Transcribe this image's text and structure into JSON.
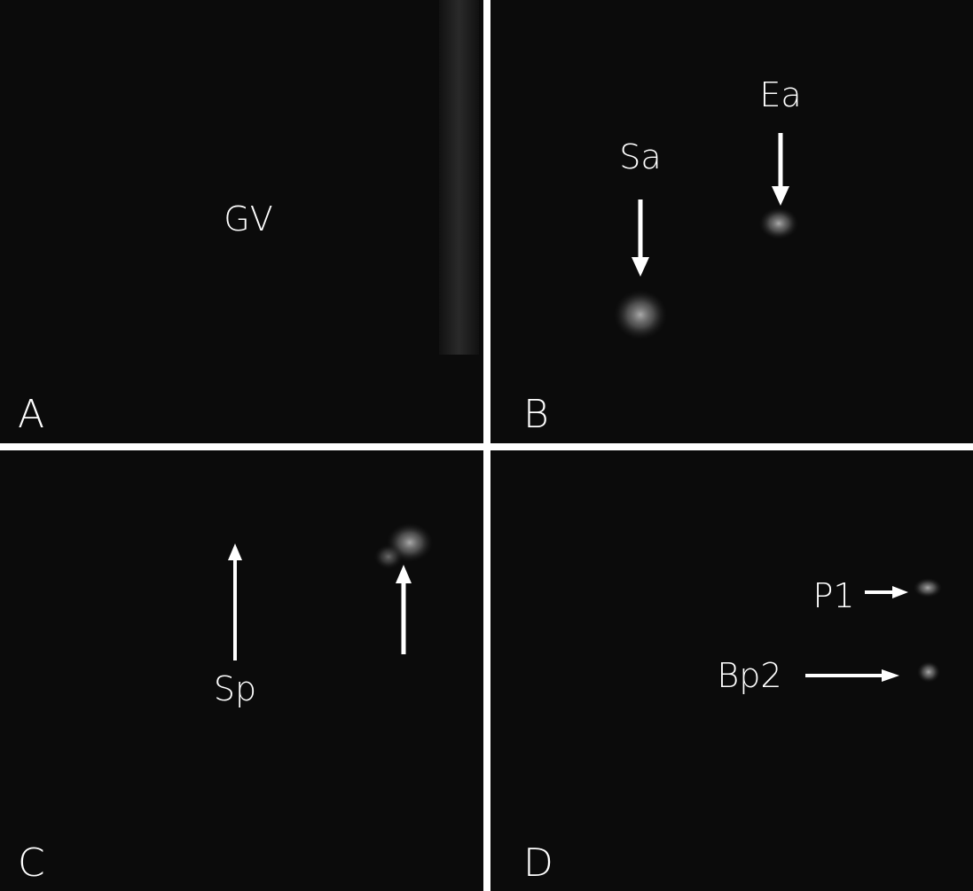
{
  "panels": [
    {
      "label": "A",
      "annotations": [
        "GV"
      ]
    },
    {
      "label": "B",
      "annotations": [
        "Sa",
        "Ea"
      ]
    },
    {
      "label": "C",
      "annotations": [
        "Sp"
      ]
    },
    {
      "label": "D",
      "annotations": [
        "P1",
        "Bp2"
      ]
    }
  ]
}
